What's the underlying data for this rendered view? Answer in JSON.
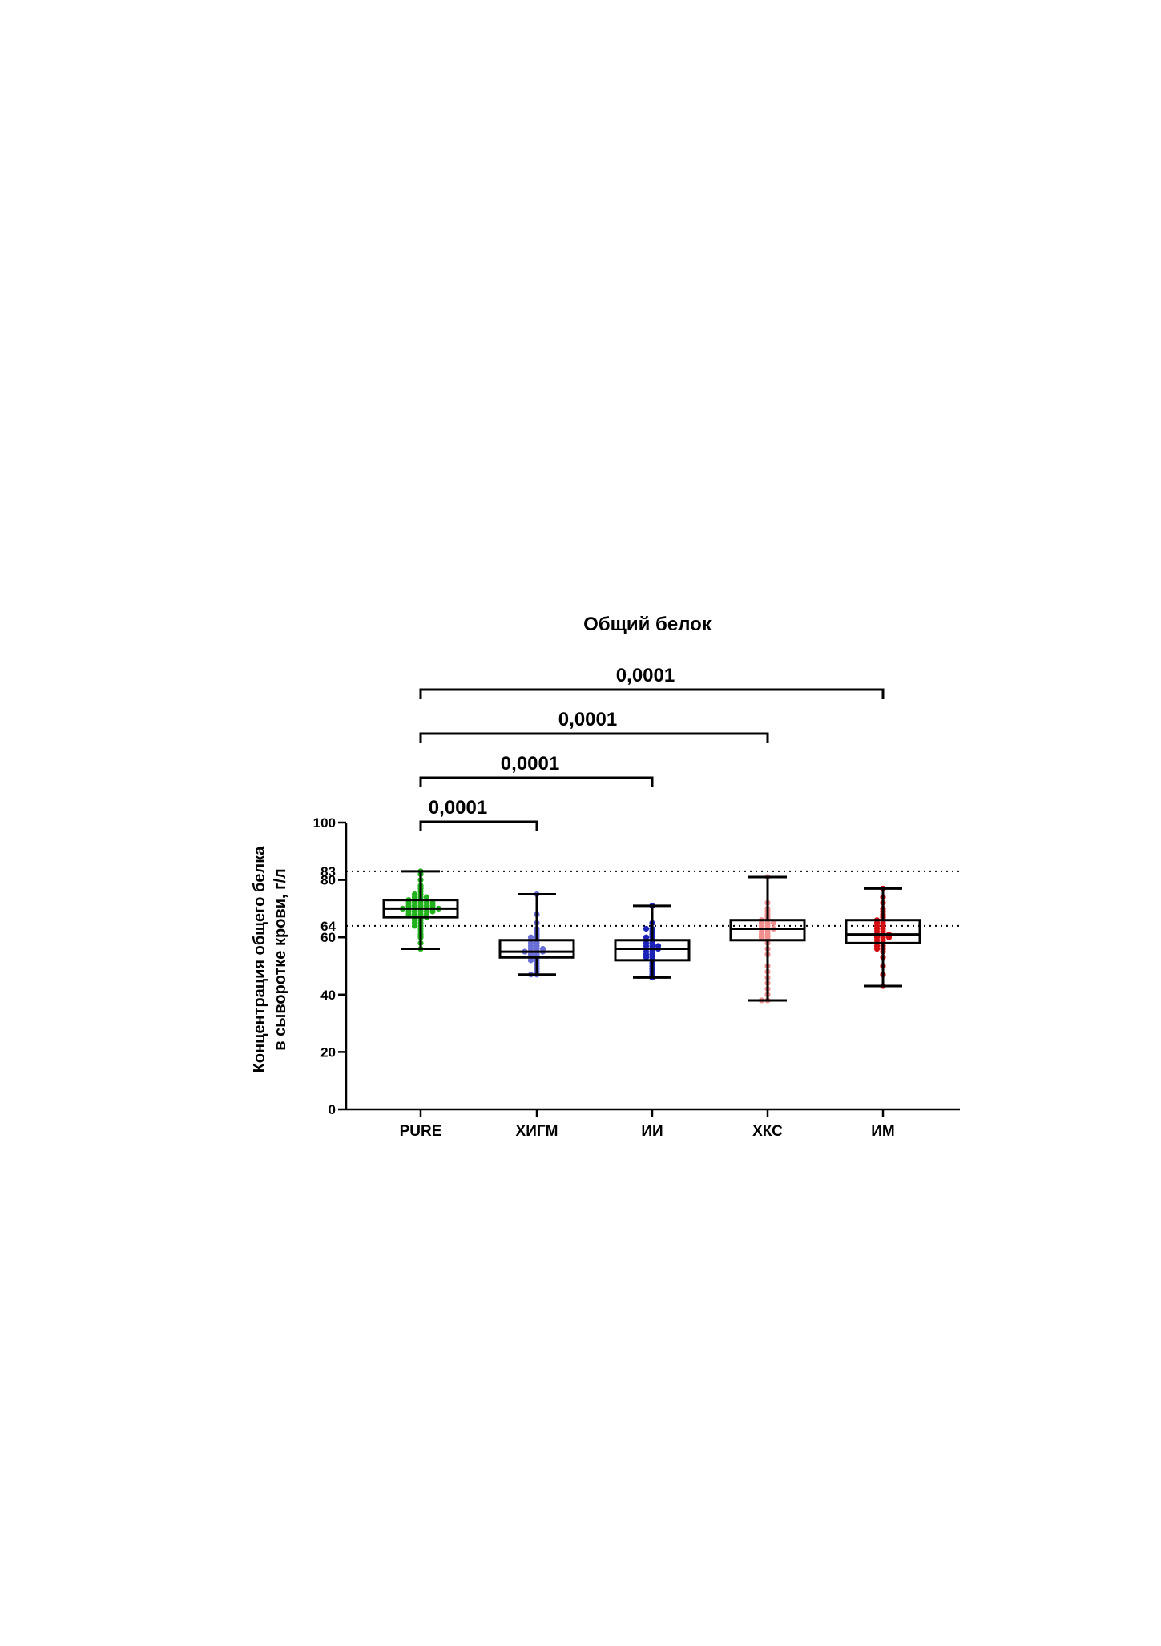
{
  "chart_data": {
    "type": "box",
    "title": "Общий белок",
    "ylabel_lines": [
      "Концентрация общего белка",
      "в сыворотке крови, г/л"
    ],
    "ylim": [
      0,
      100
    ],
    "yticks": [
      0,
      20,
      40,
      60,
      80,
      100
    ],
    "categories": [
      "PURE",
      "ХИГМ",
      "ИИ",
      "ХКС",
      "ИМ"
    ],
    "colors": [
      "#22b31c",
      "#6a6fd8",
      "#1b22b8",
      "#f0908f",
      "#d40f12"
    ],
    "boxes": [
      {
        "name": "PURE",
        "min": 56,
        "q1": 67,
        "median": 70,
        "q3": 73,
        "max": 83
      },
      {
        "name": "ХИГМ",
        "min": 47,
        "q1": 53,
        "median": 55,
        "q3": 59,
        "max": 75
      },
      {
        "name": "ИИ",
        "min": 46,
        "q1": 52,
        "median": 56,
        "q3": 59,
        "max": 71
      },
      {
        "name": "ХКС",
        "min": 38,
        "q1": 59,
        "median": 63,
        "q3": 66,
        "max": 81
      },
      {
        "name": "ИМ",
        "min": 43,
        "q1": 58,
        "median": 61,
        "q3": 66,
        "max": 77
      }
    ],
    "points": [
      [
        56,
        58,
        60,
        61,
        62,
        63,
        64,
        64,
        65,
        65,
        66,
        66,
        67,
        67,
        67,
        68,
        68,
        68,
        68,
        69,
        69,
        69,
        69,
        69,
        70,
        70,
        70,
        70,
        70,
        70,
        70,
        71,
        71,
        71,
        71,
        71,
        72,
        72,
        72,
        72,
        72,
        73,
        73,
        73,
        73,
        74,
        74,
        74,
        75,
        75,
        76,
        77,
        78,
        80,
        82,
        83
      ],
      [
        47,
        47,
        48,
        49,
        50,
        51,
        52,
        52,
        53,
        53,
        54,
        54,
        55,
        55,
        55,
        55,
        56,
        56,
        56,
        57,
        57,
        58,
        58,
        59,
        59,
        60,
        60,
        61,
        62,
        63,
        65,
        68,
        75
      ],
      [
        46,
        47,
        48,
        49,
        50,
        51,
        52,
        53,
        53,
        54,
        54,
        55,
        55,
        56,
        56,
        56,
        57,
        57,
        57,
        58,
        58,
        59,
        59,
        60,
        60,
        61,
        62,
        63,
        63,
        65,
        71
      ],
      [
        38,
        38,
        40,
        42,
        44,
        46,
        48,
        50,
        54,
        56,
        58,
        59,
        60,
        60,
        61,
        61,
        62,
        62,
        63,
        63,
        63,
        64,
        64,
        65,
        65,
        65,
        66,
        66,
        67,
        68,
        69,
        70,
        72,
        81
      ],
      [
        43,
        47,
        50,
        53,
        55,
        56,
        56,
        57,
        57,
        58,
        58,
        59,
        59,
        60,
        60,
        60,
        61,
        61,
        61,
        62,
        62,
        63,
        63,
        64,
        64,
        65,
        65,
        66,
        66,
        67,
        68,
        69,
        70,
        72,
        74,
        77
      ]
    ],
    "reference_lines": [
      {
        "value": 83,
        "label": "83"
      },
      {
        "value": 64,
        "label": "64"
      }
    ],
    "significance": [
      {
        "from": 0,
        "to": 1,
        "label": "0,0001"
      },
      {
        "from": 0,
        "to": 2,
        "label": "0,0001"
      },
      {
        "from": 0,
        "to": 3,
        "label": "0,0001"
      },
      {
        "from": 0,
        "to": 4,
        "label": "0,0001"
      }
    ]
  }
}
